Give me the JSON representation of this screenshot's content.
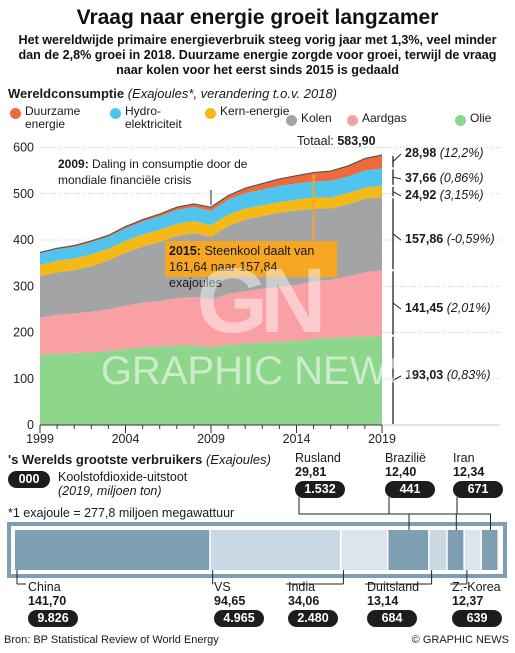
{
  "title": "Vraag naar energie groeit langzamer",
  "subtitle": "Het wereldwijde primaire energieverbruik steeg vorig jaar met 1,3%, veel minder dan de 2,8% groei in 2018. Duurzame energie zorgde voor groei, terwijl de vraag naar kolen voor het eerst sinds 2015 is gedaald",
  "section1": {
    "heading": "Wereldconsumptie",
    "sub": "(Exajoules*, verandering t.o.v. 2018)"
  },
  "legend": [
    {
      "label": "Duurzame energie",
      "color": "#ef6a3a"
    },
    {
      "label": "Hydro-elektriciteit",
      "color": "#4fc4ef"
    },
    {
      "label": "Kern-energie",
      "color": "#f5b915"
    },
    {
      "label": "Kolen",
      "color": "#a3a4a6"
    },
    {
      "label": "Aardgas",
      "color": "#f8a0a4"
    },
    {
      "label": "Olie",
      "color": "#8ed68c"
    }
  ],
  "total": {
    "label": "Totaal:",
    "value": "583,90"
  },
  "value_labels": [
    {
      "value": "28,98",
      "change": "(12,2%)"
    },
    {
      "value": "37,66",
      "change": "(0,86%)"
    },
    {
      "value": "24,92",
      "change": "(3,15%)"
    },
    {
      "value": "157,86",
      "change": "(-0,59%)"
    },
    {
      "value": "141,45",
      "change": "(2,01%)"
    },
    {
      "value": "193,03",
      "change": "(0,83%)"
    }
  ],
  "annotations": {
    "a2009_year": "2009:",
    "a2009_text": "Daling in consumptie door de mondiale financiële crisis",
    "a2015_year": "2015:",
    "a2015_text": "Steenkool daalt van 161,64 naar 157,84 exajoules"
  },
  "chart_data": {
    "type": "area",
    "stacked": true,
    "x": [
      1999,
      2000,
      2001,
      2002,
      2003,
      2004,
      2005,
      2006,
      2007,
      2008,
      2009,
      2010,
      2011,
      2012,
      2013,
      2014,
      2015,
      2016,
      2017,
      2018,
      2019
    ],
    "series": [
      {
        "name": "Olie",
        "values": [
          152,
          154,
          156,
          157,
          160,
          165,
          168,
          170,
          172,
          172,
          168,
          174,
          176,
          178,
          180,
          182,
          186,
          188,
          190,
          191,
          193.03
        ]
      },
      {
        "name": "Aardgas",
        "values": [
          80,
          84,
          85,
          88,
          90,
          93,
          96,
          98,
          102,
          105,
          103,
          110,
          113,
          117,
          119,
          121,
          124,
          126,
          131,
          139,
          141.45
        ]
      },
      {
        "name": "Kolen",
        "values": [
          90,
          92,
          94,
          98,
          106,
          114,
          122,
          128,
          135,
          138,
          136,
          146,
          155,
          157,
          160,
          161,
          157.84,
          154,
          156,
          159,
          157.86
        ]
      },
      {
        "name": "Kern-energie",
        "values": [
          24,
          25,
          25,
          26,
          25,
          26,
          26,
          26,
          26,
          26,
          25,
          25,
          24,
          23,
          23,
          23,
          24,
          24,
          24,
          24,
          24.92
        ]
      },
      {
        "name": "Hydro-elektriciteit",
        "values": [
          25,
          25,
          25,
          26,
          26,
          27,
          28,
          29,
          30,
          30,
          31,
          32,
          33,
          34,
          35,
          35,
          35,
          36,
          36,
          37,
          37.66
        ]
      },
      {
        "name": "Duurzame energie",
        "values": [
          2,
          2,
          3,
          3,
          3,
          4,
          4,
          5,
          6,
          7,
          8,
          9,
          11,
          13,
          15,
          17,
          19,
          21,
          23,
          26,
          28.98
        ]
      }
    ],
    "xticks": [
      "1999",
      "2004",
      "2009",
      "2014",
      "2019"
    ],
    "yticks": [
      0,
      100,
      200,
      300,
      400,
      500,
      600
    ],
    "ylim": [
      0,
      600
    ],
    "xlim": [
      1999,
      2019
    ],
    "grid": true
  },
  "section2": {
    "heading": "'s Werelds grootste verbruikers",
    "sub": "(Exajoules)"
  },
  "co2_legend": {
    "pill": "000",
    "label": "Koolstofdioxide-uitstoot",
    "sub": "(2019, miljoen ton)"
  },
  "footnote": "*1 exajoule = 277,8 miljoen megawattuur",
  "consumers": [
    {
      "name": "China",
      "value": "141,70",
      "co2": "9.826",
      "ej": 141.7,
      "color": "#7e9eb2"
    },
    {
      "name": "VS",
      "value": "94,65",
      "co2": "4.965",
      "ej": 94.65,
      "color": "#c9d8e2"
    },
    {
      "name": "India",
      "value": "34,06",
      "co2": "2.480",
      "ej": 34.06,
      "color": "#dbe5ec"
    },
    {
      "name": "Rusland",
      "value": "29,81",
      "co2": "1.532",
      "ej": 29.81,
      "color": "#7e9eb2"
    },
    {
      "name": "Duitsland",
      "value": "13,14",
      "co2": "684",
      "ej": 13.14,
      "color": "#c9d8e2"
    },
    {
      "name": "Brazilië",
      "value": "12,40",
      "co2": "441",
      "ej": 12.4,
      "color": "#7e9eb2"
    },
    {
      "name": "Z.-Korea",
      "value": "12,37",
      "co2": "639",
      "ej": 12.37,
      "color": "#dbe5ec"
    },
    {
      "name": "Iran",
      "value": "12,34",
      "co2": "671",
      "ej": 12.34,
      "color": "#7e9eb2"
    }
  ],
  "source": "Bron: BP Statistical Review of World Energy",
  "copyright": "© GRAPHIC NEWS",
  "watermark": {
    "logo": "GN",
    "text": "GRAPHIC NEWS"
  }
}
